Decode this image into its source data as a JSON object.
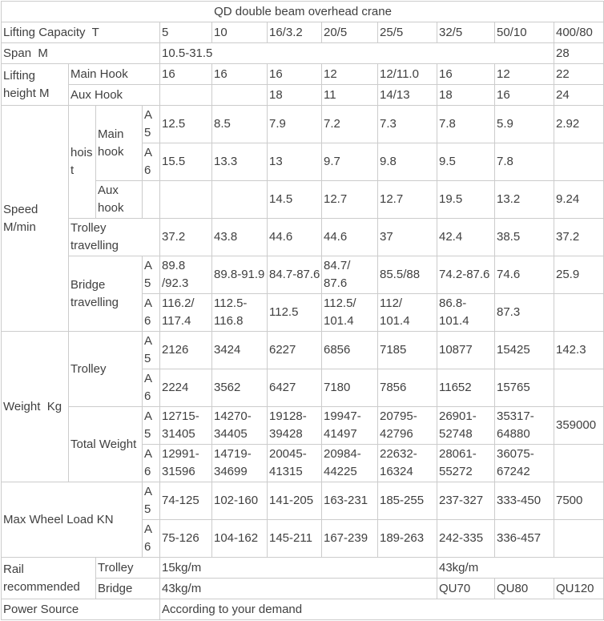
{
  "colors": {
    "border": "#cccccc",
    "text": "#404040",
    "background": "#ffffff"
  },
  "table": {
    "rows": [
      {
        "cells": [
          {
            "t": "QD double beam overhead crane",
            "cs": 12,
            "al": "center",
            "n": "table-title"
          }
        ]
      },
      {
        "cells": [
          {
            "t": "Lifting Capacity  T",
            "cs": 4,
            "n": "row-label"
          },
          {
            "t": "5",
            "n": "col-header"
          },
          {
            "t": "10",
            "n": "col-header"
          },
          {
            "t": "16/3.2",
            "n": "col-header"
          },
          {
            "t": "20/5",
            "n": "col-header"
          },
          {
            "t": "25/5",
            "n": "col-header"
          },
          {
            "t": "32/5",
            "n": "col-header"
          },
          {
            "t": "50/10",
            "n": "col-header"
          },
          {
            "t": "400/80",
            "n": "col-header"
          }
        ]
      },
      {
        "cells": [
          {
            "t": "Span  M",
            "cs": 4,
            "n": "row-label"
          },
          {
            "t": "10.5-31.5",
            "cs": 7
          },
          {
            "t": "28"
          }
        ]
      },
      {
        "cells": [
          {
            "t": "Lifting\nheight M",
            "rs": 2,
            "n": "row-label"
          },
          {
            "t": "Main Hook",
            "cs": 3,
            "n": "row-label"
          },
          {
            "t": "16"
          },
          {
            "t": "16"
          },
          {
            "t": "16"
          },
          {
            "t": "12"
          },
          {
            "t": "12/11.0"
          },
          {
            "t": "16"
          },
          {
            "t": "12"
          },
          {
            "t": "22"
          }
        ]
      },
      {
        "cells": [
          {
            "t": "Aux Hook",
            "cs": 3,
            "n": "row-label"
          },
          {
            "t": ""
          },
          {
            "t": ""
          },
          {
            "t": "18"
          },
          {
            "t": "11"
          },
          {
            "t": "14/13"
          },
          {
            "t": "18"
          },
          {
            "t": "16"
          },
          {
            "t": "24"
          }
        ]
      },
      {
        "cells": [
          {
            "t": "Speed\nM/min",
            "rs": 6,
            "n": "row-label"
          },
          {
            "t": "hoist",
            "rs": 3,
            "n": "row-label"
          },
          {
            "t": "Main\nhook",
            "rs": 2,
            "n": "row-label"
          },
          {
            "t": "A5",
            "n": "class-label"
          },
          {
            "t": "12.5"
          },
          {
            "t": "8.5"
          },
          {
            "t": "7.9"
          },
          {
            "t": "7.2"
          },
          {
            "t": "7.3"
          },
          {
            "t": "7.8"
          },
          {
            "t": "5.9"
          },
          {
            "t": "2.92"
          }
        ]
      },
      {
        "cells": [
          {
            "t": "A6",
            "n": "class-label"
          },
          {
            "t": "15.5"
          },
          {
            "t": "13.3"
          },
          {
            "t": "13"
          },
          {
            "t": "9.7"
          },
          {
            "t": "9.8"
          },
          {
            "t": "9.5"
          },
          {
            "t": "7.8"
          },
          {
            "t": ""
          }
        ]
      },
      {
        "cells": [
          {
            "t": "Aux\nhook",
            "n": "row-label"
          },
          {
            "t": ""
          },
          {
            "t": ""
          },
          {
            "t": ""
          },
          {
            "t": "14.5"
          },
          {
            "t": "12.7"
          },
          {
            "t": "12.7"
          },
          {
            "t": "19.5"
          },
          {
            "t": "13.2"
          },
          {
            "t": "9.24"
          }
        ]
      },
      {
        "cells": [
          {
            "t": "Trolley\ntravelling",
            "cs": 3,
            "n": "row-label"
          },
          {
            "t": "37.2"
          },
          {
            "t": "43.8"
          },
          {
            "t": "44.6"
          },
          {
            "t": "44.6"
          },
          {
            "t": "37"
          },
          {
            "t": "42.4"
          },
          {
            "t": "38.5"
          },
          {
            "t": "37.2"
          }
        ]
      },
      {
        "cells": [
          {
            "t": "Bridge\ntravelling",
            "cs": 2,
            "rs": 2,
            "n": "row-label"
          },
          {
            "t": "A5",
            "n": "class-label"
          },
          {
            "t": "89.8\n/92.3"
          },
          {
            "t": "89.8-91.9"
          },
          {
            "t": "84.7-87.6"
          },
          {
            "t": "84.7/\n87.6"
          },
          {
            "t": "85.5/88"
          },
          {
            "t": "74.2-87.6"
          },
          {
            "t": "74.6"
          },
          {
            "t": "25.9"
          }
        ]
      },
      {
        "cells": [
          {
            "t": "A6",
            "n": "class-label"
          },
          {
            "t": "116.2/\n117.4"
          },
          {
            "t": "112.5-\n116.8"
          },
          {
            "t": "112.5"
          },
          {
            "t": "112.5/\n101.4"
          },
          {
            "t": "112/\n101.4"
          },
          {
            "t": "86.8-\n101.4"
          },
          {
            "t": "87.3"
          },
          {
            "t": ""
          }
        ]
      },
      {
        "cells": [
          {
            "t": "Weight  Kg",
            "rs": 4,
            "n": "row-label"
          },
          {
            "t": "Trolley",
            "cs": 2,
            "rs": 2,
            "n": "row-label"
          },
          {
            "t": "A5",
            "n": "class-label"
          },
          {
            "t": "2126"
          },
          {
            "t": "3424"
          },
          {
            "t": "6227"
          },
          {
            "t": "6856"
          },
          {
            "t": "7185"
          },
          {
            "t": "10877"
          },
          {
            "t": "15425"
          },
          {
            "t": "142.3"
          }
        ]
      },
      {
        "cells": [
          {
            "t": "A6",
            "n": "class-label"
          },
          {
            "t": "2224"
          },
          {
            "t": "3562"
          },
          {
            "t": "6427"
          },
          {
            "t": "7180"
          },
          {
            "t": "7856"
          },
          {
            "t": "11652"
          },
          {
            "t": "15765"
          },
          {
            "t": ""
          }
        ]
      },
      {
        "cells": [
          {
            "t": "Total Weight",
            "cs": 2,
            "rs": 2,
            "n": "row-label"
          },
          {
            "t": "A5",
            "n": "class-label"
          },
          {
            "t": "12715-\n31405"
          },
          {
            "t": "14270-\n34405"
          },
          {
            "t": "19128-\n39428"
          },
          {
            "t": "19947-\n41497"
          },
          {
            "t": "20795-\n42796"
          },
          {
            "t": "26901-\n52748"
          },
          {
            "t": "35317-\n64880"
          },
          {
            "t": "359000"
          }
        ]
      },
      {
        "cells": [
          {
            "t": "A6",
            "n": "class-label"
          },
          {
            "t": "12991-\n31596"
          },
          {
            "t": "14719-\n34699"
          },
          {
            "t": "20045-\n41315"
          },
          {
            "t": "20984-\n44225"
          },
          {
            "t": "22632-\n16324"
          },
          {
            "t": "28061-\n55272"
          },
          {
            "t": "36075-\n67242"
          },
          {
            "t": ""
          }
        ]
      },
      {
        "cells": [
          {
            "t": "Max Wheel Load KN",
            "cs": 3,
            "rs": 2,
            "n": "row-label"
          },
          {
            "t": "A5",
            "n": "class-label"
          },
          {
            "t": "74-125"
          },
          {
            "t": "102-160"
          },
          {
            "t": "141-205"
          },
          {
            "t": "163-231"
          },
          {
            "t": "185-255"
          },
          {
            "t": "237-327"
          },
          {
            "t": "333-450"
          },
          {
            "t": "7500"
          }
        ]
      },
      {
        "cells": [
          {
            "t": "A6",
            "n": "class-label"
          },
          {
            "t": "75-126"
          },
          {
            "t": "104-162"
          },
          {
            "t": "145-211"
          },
          {
            "t": "167-239"
          },
          {
            "t": "189-263"
          },
          {
            "t": "242-335"
          },
          {
            "t": "336-457"
          },
          {
            "t": ""
          }
        ]
      },
      {
        "cells": [
          {
            "t": "Rail\nrecommended",
            "cs": 2,
            "rs": 2,
            "n": "row-label"
          },
          {
            "t": "Trolley",
            "cs": 2,
            "n": "row-label"
          },
          {
            "t": "15kg/m",
            "cs": 5
          },
          {
            "t": "43kg/m",
            "cs": 3
          }
        ]
      },
      {
        "cells": [
          {
            "t": "Bridge",
            "cs": 2,
            "n": "row-label"
          },
          {
            "t": "43kg/m",
            "cs": 5
          },
          {
            "t": "QU70"
          },
          {
            "t": "QU80"
          },
          {
            "t": "QU120"
          }
        ]
      },
      {
        "cells": [
          {
            "t": "Power Source",
            "cs": 4,
            "n": "row-label"
          },
          {
            "t": "According to your demand",
            "cs": 8
          }
        ]
      }
    ]
  }
}
